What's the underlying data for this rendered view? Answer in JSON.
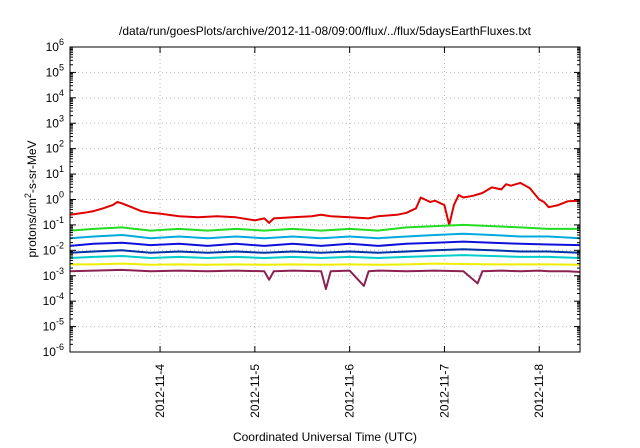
{
  "chart_data": {
    "type": "line",
    "title": "/data/run/goesPlots/archive/2012-11-08/09:00/flux/../flux/5daysEarthFluxes.txt",
    "xlabel": "Coordinated Universal Time (UTC)",
    "ylabel_parts": [
      "protons/cm",
      "2",
      "-s-sr-MeV"
    ],
    "y_scale": "log",
    "ylim_exp": [
      -6,
      6
    ],
    "y_ticks": [
      {
        "base": "10",
        "exp": "-6"
      },
      {
        "base": "10",
        "exp": "-5"
      },
      {
        "base": "10",
        "exp": "-4"
      },
      {
        "base": "10",
        "exp": "-3"
      },
      {
        "base": "10",
        "exp": "-2"
      },
      {
        "base": "10",
        "exp": "-1"
      },
      {
        "base": "10",
        "exp": "0"
      },
      {
        "base": "10",
        "exp": "1"
      },
      {
        "base": "10",
        "exp": "2"
      },
      {
        "base": "10",
        "exp": "3"
      },
      {
        "base": "10",
        "exp": "4"
      },
      {
        "base": "10",
        "exp": "5"
      },
      {
        "base": "10",
        "exp": "6"
      }
    ],
    "xlim_days": [
      3.05,
      8.43
    ],
    "x_ticks": [
      {
        "label": "2012-11-4",
        "day": 4
      },
      {
        "label": "2012-11-5",
        "day": 5
      },
      {
        "label": "2012-11-6",
        "day": 6
      },
      {
        "label": "2012-11-7",
        "day": 7
      },
      {
        "label": "2012-11-8",
        "day": 8
      }
    ],
    "grid": true,
    "series": [
      {
        "color": "#e00000",
        "x_day": [
          3.05,
          3.2,
          3.3,
          3.4,
          3.5,
          3.55,
          3.6,
          3.7,
          3.8,
          3.9,
          4.0,
          4.2,
          4.4,
          4.6,
          4.8,
          5.0,
          5.1,
          5.15,
          5.2,
          5.4,
          5.6,
          5.7,
          5.8,
          6.0,
          6.2,
          6.3,
          6.5,
          6.6,
          6.7,
          6.75,
          6.85,
          6.9,
          7.0,
          7.05,
          7.1,
          7.15,
          7.2,
          7.3,
          7.4,
          7.5,
          7.6,
          7.65,
          7.7,
          7.8,
          7.9,
          8.0,
          8.05,
          8.1,
          8.2,
          8.3,
          8.43
        ],
        "y": [
          0.25,
          0.3,
          0.35,
          0.45,
          0.6,
          0.8,
          0.7,
          0.5,
          0.35,
          0.3,
          0.28,
          0.22,
          0.2,
          0.22,
          0.2,
          0.15,
          0.18,
          0.12,
          0.18,
          0.2,
          0.22,
          0.25,
          0.22,
          0.2,
          0.18,
          0.22,
          0.25,
          0.3,
          0.45,
          1.2,
          0.8,
          0.9,
          0.6,
          0.1,
          0.6,
          1.5,
          1.2,
          1.4,
          1.8,
          3.0,
          2.5,
          4.0,
          3.5,
          4.5,
          2.8,
          1.0,
          0.8,
          0.5,
          0.6,
          0.85,
          0.9
        ]
      },
      {
        "color": "#22dd22",
        "x_day": [
          3.05,
          3.3,
          3.6,
          3.9,
          4.2,
          4.5,
          4.8,
          5.1,
          5.4,
          5.7,
          6.0,
          6.3,
          6.6,
          6.9,
          7.2,
          7.5,
          7.8,
          8.1,
          8.43
        ],
        "y": [
          0.06,
          0.07,
          0.08,
          0.06,
          0.07,
          0.06,
          0.07,
          0.06,
          0.07,
          0.06,
          0.07,
          0.06,
          0.08,
          0.09,
          0.1,
          0.09,
          0.08,
          0.07,
          0.07
        ]
      },
      {
        "color": "#00aadd",
        "x_day": [
          3.05,
          3.3,
          3.6,
          3.9,
          4.2,
          4.5,
          4.8,
          5.1,
          5.4,
          5.7,
          6.0,
          6.3,
          6.6,
          6.9,
          7.2,
          7.5,
          7.8,
          8.1,
          8.43
        ],
        "y": [
          0.03,
          0.035,
          0.04,
          0.03,
          0.035,
          0.03,
          0.035,
          0.03,
          0.035,
          0.03,
          0.035,
          0.03,
          0.035,
          0.04,
          0.045,
          0.04,
          0.035,
          0.035,
          0.03
        ]
      },
      {
        "color": "#1010dd",
        "x_day": [
          3.05,
          3.3,
          3.6,
          3.9,
          4.2,
          4.5,
          4.8,
          5.1,
          5.4,
          5.7,
          6.0,
          6.3,
          6.6,
          6.9,
          7.2,
          7.5,
          7.8,
          8.1,
          8.43
        ],
        "y": [
          0.015,
          0.018,
          0.02,
          0.016,
          0.018,
          0.015,
          0.018,
          0.015,
          0.018,
          0.015,
          0.018,
          0.015,
          0.018,
          0.02,
          0.022,
          0.02,
          0.018,
          0.017,
          0.016
        ]
      },
      {
        "color": "#0033aa",
        "x_day": [
          3.05,
          3.3,
          3.6,
          3.9,
          4.2,
          4.5,
          4.8,
          5.1,
          5.4,
          5.7,
          6.0,
          6.3,
          6.6,
          6.9,
          7.2,
          7.5,
          7.8,
          8.1,
          8.43
        ],
        "y": [
          0.008,
          0.009,
          0.01,
          0.008,
          0.009,
          0.008,
          0.009,
          0.008,
          0.009,
          0.008,
          0.009,
          0.008,
          0.009,
          0.01,
          0.011,
          0.01,
          0.009,
          0.009,
          0.008
        ]
      },
      {
        "color": "#00cccc",
        "x_day": [
          3.05,
          3.3,
          3.6,
          3.9,
          4.2,
          4.5,
          4.8,
          5.1,
          5.4,
          5.7,
          6.0,
          6.3,
          6.6,
          6.9,
          7.2,
          7.5,
          7.8,
          8.1,
          8.43
        ],
        "y": [
          0.005,
          0.0055,
          0.006,
          0.005,
          0.0055,
          0.005,
          0.0055,
          0.005,
          0.0055,
          0.005,
          0.0055,
          0.005,
          0.0055,
          0.006,
          0.0065,
          0.006,
          0.0055,
          0.0055,
          0.005
        ]
      },
      {
        "color": "#eeee00",
        "x_day": [
          3.05,
          3.3,
          3.6,
          3.9,
          4.2,
          4.5,
          4.8,
          5.1,
          5.4,
          5.7,
          6.0,
          6.3,
          6.6,
          6.9,
          7.2,
          7.5,
          7.8,
          8.1,
          8.43
        ],
        "y": [
          0.0028,
          0.0028,
          0.003,
          0.0027,
          0.0028,
          0.0027,
          0.0028,
          0.0027,
          0.0028,
          0.0027,
          0.0028,
          0.0027,
          0.0028,
          0.003,
          0.0029,
          0.0028,
          0.0028,
          0.0028,
          0.0027
        ]
      },
      {
        "color": "#8b2252",
        "x_day": [
          3.05,
          3.3,
          3.6,
          3.9,
          4.2,
          4.5,
          4.8,
          5.1,
          5.15,
          5.2,
          5.4,
          5.7,
          5.75,
          5.8,
          6.0,
          6.15,
          6.2,
          6.3,
          6.6,
          6.9,
          7.2,
          7.35,
          7.4,
          7.6,
          7.8,
          8.0,
          8.1,
          8.3,
          8.43
        ],
        "y": [
          0.0015,
          0.0016,
          0.0017,
          0.0015,
          0.0016,
          0.0015,
          0.0016,
          0.0015,
          0.0007,
          0.0015,
          0.0016,
          0.0015,
          0.0003,
          0.0015,
          0.0016,
          0.0004,
          0.0015,
          0.0016,
          0.0015,
          0.0016,
          0.0015,
          0.0005,
          0.0015,
          0.0016,
          0.0015,
          0.0016,
          0.0015,
          0.0015,
          0.0014
        ]
      }
    ]
  }
}
